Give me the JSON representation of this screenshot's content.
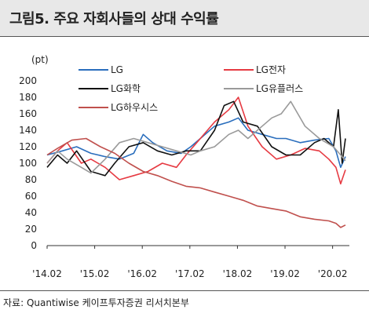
{
  "title": "그림5. 주요 자회사들의 상대 수익률",
  "source": "자료: Quantiwise 케이프투자증권 리서치본부",
  "chart_data": {
    "type": "line",
    "ylabel": "(pt)",
    "ylim": [
      0,
      200
    ],
    "yticks": [
      0,
      20,
      40,
      60,
      80,
      100,
      120,
      140,
      160,
      180,
      200
    ],
    "xlim": [
      2014.08,
      2020.35
    ],
    "xticks": [
      {
        "label": "'14.02",
        "x": 2014.08
      },
      {
        "label": "'15.02",
        "x": 2015.08
      },
      {
        "label": "'16.02",
        "x": 2016.08
      },
      {
        "label": "'17.02",
        "x": 2017.08
      },
      {
        "label": "'18.02",
        "x": 2018.08
      },
      {
        "label": "'19.02",
        "x": 2019.08
      },
      {
        "label": "'20.02",
        "x": 2020.08
      }
    ],
    "series": [
      {
        "name": "LG",
        "color": "#2a6ebd",
        "x": [
          2014.08,
          2014.4,
          2014.7,
          2015.0,
          2015.3,
          2015.6,
          2015.9,
          2016.1,
          2016.3,
          2016.6,
          2016.9,
          2017.1,
          2017.3,
          2017.6,
          2017.9,
          2018.1,
          2018.3,
          2018.6,
          2018.9,
          2019.1,
          2019.4,
          2019.7,
          2020.0,
          2020.15,
          2020.25,
          2020.35
        ],
        "y": [
          110,
          115,
          120,
          112,
          108,
          105,
          112,
          135,
          125,
          115,
          112,
          120,
          130,
          145,
          150,
          155,
          140,
          135,
          130,
          130,
          125,
          128,
          130,
          115,
          95,
          108
        ]
      },
      {
        "name": "LG전자",
        "color": "#e63a42",
        "x": [
          2014.08,
          2014.3,
          2014.5,
          2014.8,
          2015.0,
          2015.3,
          2015.6,
          2015.9,
          2016.2,
          2016.5,
          2016.8,
          2017.0,
          2017.3,
          2017.6,
          2017.9,
          2018.1,
          2018.3,
          2018.6,
          2018.9,
          2019.2,
          2019.5,
          2019.8,
          2020.0,
          2020.15,
          2020.25,
          2020.35
        ],
        "y": [
          100,
          115,
          125,
          100,
          105,
          95,
          80,
          85,
          90,
          100,
          95,
          110,
          130,
          150,
          165,
          180,
          145,
          120,
          105,
          110,
          118,
          115,
          105,
          95,
          75,
          92
        ]
      },
      {
        "name": "LG화학",
        "color": "#111111",
        "x": [
          2014.08,
          2014.3,
          2014.5,
          2014.7,
          2015.0,
          2015.3,
          2015.5,
          2015.8,
          2016.1,
          2016.4,
          2016.7,
          2017.0,
          2017.3,
          2017.6,
          2017.8,
          2018.0,
          2018.2,
          2018.5,
          2018.8,
          2019.1,
          2019.4,
          2019.7,
          2019.9,
          2020.1,
          2020.2,
          2020.28,
          2020.35
        ],
        "y": [
          95,
          110,
          100,
          115,
          90,
          85,
          100,
          120,
          125,
          115,
          110,
          115,
          115,
          140,
          170,
          175,
          150,
          145,
          120,
          110,
          110,
          125,
          130,
          120,
          165,
          100,
          130
        ]
      },
      {
        "name": "LG유플러스",
        "color": "#9a9a9a",
        "x": [
          2014.08,
          2014.3,
          2014.5,
          2014.8,
          2015.0,
          2015.3,
          2015.6,
          2015.9,
          2016.2,
          2016.5,
          2016.8,
          2017.1,
          2017.3,
          2017.6,
          2017.9,
          2018.1,
          2018.3,
          2018.6,
          2018.8,
          2019.0,
          2019.2,
          2019.5,
          2019.8,
          2020.1,
          2020.25,
          2020.35
        ],
        "y": [
          100,
          115,
          105,
          95,
          88,
          105,
          125,
          130,
          125,
          120,
          115,
          110,
          115,
          120,
          135,
          140,
          130,
          145,
          155,
          160,
          175,
          145,
          130,
          120,
          110,
          103
        ]
      },
      {
        "name": "LG하우시스",
        "color": "#c0504d",
        "x": [
          2014.08,
          2014.3,
          2014.6,
          2014.9,
          2015.2,
          2015.5,
          2015.8,
          2016.1,
          2016.4,
          2016.7,
          2017.0,
          2017.3,
          2017.6,
          2017.9,
          2018.2,
          2018.5,
          2018.8,
          2019.1,
          2019.4,
          2019.7,
          2020.0,
          2020.15,
          2020.25,
          2020.35
        ],
        "y": [
          110,
          118,
          128,
          130,
          120,
          112,
          100,
          90,
          85,
          78,
          72,
          70,
          65,
          60,
          55,
          48,
          45,
          42,
          35,
          32,
          30,
          27,
          22,
          25
        ]
      }
    ],
    "legend": [
      "LG",
      "LG전자",
      "LG화학",
      "LG유플러스",
      "LG하우시스"
    ]
  }
}
